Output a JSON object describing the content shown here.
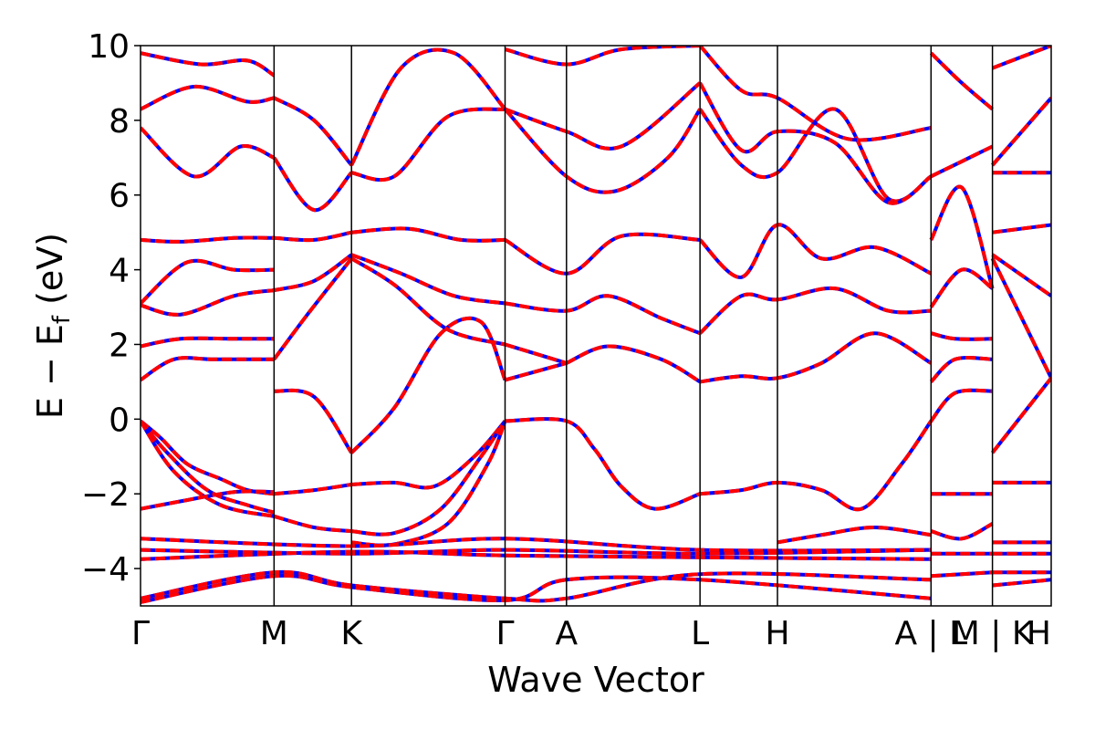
{
  "chart_data": {
    "type": "line",
    "title": "",
    "xlabel": "Wave Vector",
    "ylabel": "E  −  E",
    "ylabel_sub": "f",
    "ylabel_unit": " (eV)",
    "ylim": [
      -5,
      10
    ],
    "yticks": [
      -4,
      -2,
      0,
      2,
      4,
      6,
      8,
      10
    ],
    "ytick_labels": [
      "−4",
      "−2",
      "0",
      "2",
      "4",
      "6",
      "8",
      "10"
    ],
    "xlim": [
      0,
      6.82
    ],
    "kpoints": [
      {
        "label": "Γ",
        "x": 0.0
      },
      {
        "label": "M",
        "x": 1.0
      },
      {
        "label": "K",
        "x": 1.58
      },
      {
        "label": "Γ",
        "x": 2.73
      },
      {
        "label": "A",
        "x": 3.19
      },
      {
        "label": "L",
        "x": 4.19
      },
      {
        "label": "H",
        "x": 4.77
      },
      {
        "label": "A | L",
        "x": 5.92
      },
      {
        "label": "M | K",
        "x": 6.38
      },
      {
        "label": "H",
        "x": 6.82
      }
    ],
    "grid": false,
    "style": {
      "line_color": "#ff0000",
      "dash_color": "#0000ff"
    },
    "series": [
      {
        "x": [
          0,
          0.15,
          0.35,
          0.6,
          0.8,
          1.0
        ],
        "values": [
          -0.05,
          -0.5,
          -1.2,
          -1.6,
          -1.9,
          -2.0
        ]
      },
      {
        "x": [
          0,
          0.2,
          0.5,
          0.8,
          1.0
        ],
        "values": [
          -0.05,
          -0.9,
          -1.9,
          -2.3,
          -2.5
        ]
      },
      {
        "x": [
          0,
          0.25,
          0.6,
          1.0
        ],
        "values": [
          -0.05,
          -1.4,
          -2.3,
          -2.6
        ]
      },
      {
        "x": [
          0,
          0.3,
          0.7,
          1.0
        ],
        "values": [
          -2.4,
          -2.2,
          -1.95,
          -1.95
        ]
      },
      {
        "x": [
          1.0,
          1.3,
          1.58
        ],
        "values": [
          -2.0,
          -1.9,
          -1.75
        ]
      },
      {
        "x": [
          1.0,
          1.3,
          1.58
        ],
        "values": [
          -2.6,
          -2.9,
          -3.0
        ]
      },
      {
        "x": [
          1.58,
          1.9,
          2.2,
          2.5,
          2.73
        ],
        "values": [
          -1.75,
          -1.7,
          -1.8,
          -1.0,
          -0.05
        ]
      },
      {
        "x": [
          1.58,
          1.9,
          2.25,
          2.55,
          2.73
        ],
        "values": [
          -3.0,
          -3.05,
          -2.4,
          -1.0,
          -0.05
        ]
      },
      {
        "x": [
          1.58,
          1.9,
          2.3,
          2.6,
          2.73
        ],
        "values": [
          -3.3,
          -3.35,
          -2.8,
          -1.2,
          -0.05
        ]
      },
      {
        "x": [
          2.73,
          3.19,
          3.4,
          3.6,
          3.85,
          4.19
        ],
        "values": [
          -0.05,
          -0.05,
          -0.8,
          -1.8,
          -2.4,
          -2.0
        ]
      },
      {
        "x": [
          4.19,
          4.5,
          4.77,
          5.1,
          5.4,
          5.7,
          5.92
        ],
        "values": [
          -2.0,
          -1.9,
          -1.7,
          -1.9,
          -2.4,
          -1.2,
          -0.05
        ]
      },
      {
        "x": [
          4.77,
          5.1,
          5.5,
          5.92
        ],
        "values": [
          -3.3,
          -3.1,
          -2.9,
          -3.1
        ]
      },
      {
        "x": [
          0,
          0.25,
          0.55,
          1.0
        ],
        "values": [
          1.05,
          1.6,
          1.6,
          1.6
        ]
      },
      {
        "x": [
          0,
          0.3,
          0.7,
          1.0
        ],
        "values": [
          1.95,
          2.15,
          2.15,
          2.15
        ]
      },
      {
        "x": [
          1.0,
          1.3,
          1.58
        ],
        "values": [
          0.75,
          0.6,
          -0.9
        ]
      },
      {
        "x": [
          1.58,
          1.9,
          2.25,
          2.55,
          2.73
        ],
        "values": [
          -0.9,
          0.3,
          2.3,
          2.6,
          1.05
        ]
      },
      {
        "x": [
          1.0,
          1.25,
          1.58
        ],
        "values": [
          1.6,
          2.8,
          4.3
        ]
      },
      {
        "x": [
          1.58,
          1.9,
          2.3,
          2.73
        ],
        "values": [
          4.3,
          3.6,
          2.4,
          2.0
        ]
      },
      {
        "x": [
          2.73,
          3.19
        ],
        "values": [
          1.05,
          1.5
        ]
      },
      {
        "x": [
          2.73,
          3.19
        ],
        "values": [
          2.0,
          1.5
        ]
      },
      {
        "x": [
          3.19,
          3.5,
          3.9,
          4.19
        ],
        "values": [
          1.5,
          1.95,
          1.6,
          1.0
        ]
      },
      {
        "x": [
          4.19,
          4.5,
          4.77,
          5.1,
          5.5,
          5.92
        ],
        "values": [
          1.0,
          1.15,
          1.1,
          1.5,
          2.3,
          1.5
        ]
      },
      {
        "x": [
          2.73,
          3.19,
          3.5,
          3.9,
          4.19
        ],
        "values": [
          3.1,
          2.9,
          3.3,
          2.7,
          2.3
        ]
      },
      {
        "x": [
          4.19,
          4.5,
          4.77,
          5.2,
          5.6,
          5.92
        ],
        "values": [
          2.3,
          3.3,
          3.2,
          3.5,
          2.9,
          2.9
        ]
      },
      {
        "x": [
          0,
          0.3,
          0.7,
          1.0
        ],
        "values": [
          3.05,
          2.8,
          3.3,
          3.45
        ]
      },
      {
        "x": [
          0,
          0.3,
          0.7,
          1.0
        ],
        "values": [
          4.8,
          4.75,
          4.85,
          4.85
        ]
      },
      {
        "x": [
          0,
          0.35,
          0.7,
          1.0
        ],
        "values": [
          3.1,
          4.2,
          4.0,
          4.0
        ]
      },
      {
        "x": [
          1.0,
          1.3,
          1.58
        ],
        "values": [
          3.45,
          3.7,
          4.4
        ]
      },
      {
        "x": [
          1.0,
          1.3,
          1.58
        ],
        "values": [
          4.85,
          4.8,
          5.0
        ]
      },
      {
        "x": [
          1.58,
          1.95,
          2.35,
          2.73
        ],
        "values": [
          4.4,
          3.9,
          3.3,
          3.1
        ]
      },
      {
        "x": [
          1.58,
          2.0,
          2.4,
          2.73
        ],
        "values": [
          5.0,
          5.1,
          4.8,
          4.8
        ]
      },
      {
        "x": [
          2.73,
          3.19,
          3.6,
          4.19
        ],
        "values": [
          4.8,
          3.9,
          4.9,
          4.8
        ]
      },
      {
        "x": [
          4.19,
          4.5,
          4.77,
          5.1,
          5.5,
          5.92
        ],
        "values": [
          4.8,
          3.8,
          5.2,
          4.3,
          4.6,
          3.9
        ]
      },
      {
        "x": [
          0,
          0.4,
          0.75,
          1.0
        ],
        "values": [
          7.8,
          6.5,
          7.3,
          7.0
        ]
      },
      {
        "x": [
          0,
          0.4,
          0.8,
          1.0
        ],
        "values": [
          8.3,
          8.9,
          8.5,
          8.6
        ]
      },
      {
        "x": [
          0,
          0.45,
          0.8,
          1.0
        ],
        "values": [
          9.8,
          9.5,
          9.6,
          9.2
        ]
      },
      {
        "x": [
          1.0,
          1.3,
          1.58
        ],
        "values": [
          7.0,
          5.6,
          6.6
        ]
      },
      {
        "x": [
          1.0,
          1.3,
          1.58
        ],
        "values": [
          8.6,
          8.0,
          6.8
        ]
      },
      {
        "x": [
          1.58,
          1.9,
          2.3,
          2.73
        ],
        "values": [
          6.6,
          6.5,
          8.1,
          8.3
        ]
      },
      {
        "x": [
          1.58,
          1.95,
          2.35,
          2.73
        ],
        "values": [
          6.8,
          9.4,
          9.8,
          8.3
        ]
      },
      {
        "x": [
          2.73,
          3.19,
          3.55,
          3.95,
          4.19
        ],
        "values": [
          8.3,
          6.5,
          6.1,
          7.0,
          8.3
        ]
      },
      {
        "x": [
          2.73,
          3.19,
          3.6,
          4.19
        ],
        "values": [
          8.3,
          7.7,
          7.3,
          9.0
        ]
      },
      {
        "x": [
          2.73,
          3.19,
          3.6,
          4.19
        ],
        "values": [
          9.9,
          9.5,
          9.9,
          10.0
        ]
      },
      {
        "x": [
          4.19,
          4.5,
          4.77,
          5.2,
          5.6,
          5.92
        ],
        "values": [
          8.3,
          6.8,
          6.6,
          8.3,
          5.9,
          6.5
        ]
      },
      {
        "x": [
          4.19,
          4.5,
          4.77,
          5.2,
          5.6,
          5.92
        ],
        "values": [
          9.0,
          7.2,
          7.7,
          7.4,
          5.8,
          6.5
        ]
      },
      {
        "x": [
          4.19,
          4.5,
          4.77,
          5.3,
          5.92
        ],
        "values": [
          10.0,
          8.8,
          8.6,
          7.5,
          7.8
        ]
      },
      {
        "x": [
          0,
          1.58,
          2.73,
          4.19,
          5.92
        ],
        "values": [
          -3.2,
          -3.4,
          -3.2,
          -3.5,
          -3.5
        ]
      },
      {
        "x": [
          0,
          1.58,
          2.73,
          4.19,
          5.92
        ],
        "values": [
          -3.5,
          -3.6,
          -3.5,
          -3.6,
          -3.5
        ]
      },
      {
        "x": [
          0,
          1.58,
          2.73,
          4.19,
          5.92
        ],
        "values": [
          -3.75,
          -3.55,
          -3.65,
          -3.7,
          -3.75
        ]
      },
      {
        "x": [
          0,
          1.0,
          1.58,
          2.73,
          3.19,
          4.19,
          5.92
        ],
        "values": [
          -4.8,
          -4.1,
          -4.45,
          -4.8,
          -4.8,
          -4.15,
          -4.3
        ]
      },
      {
        "x": [
          0,
          1.0,
          1.58,
          2.73,
          3.19,
          4.19,
          5.92
        ],
        "values": [
          -4.9,
          -4.2,
          -4.5,
          -4.85,
          -4.3,
          -4.3,
          -4.8
        ]
      },
      {
        "x": [
          5.92,
          6.1,
          6.38
        ],
        "values": [
          -0.05,
          0.7,
          0.75
        ]
      },
      {
        "x": [
          5.92,
          6.1,
          6.38
        ],
        "values": [
          1.0,
          1.6,
          1.6
        ]
      },
      {
        "x": [
          5.92,
          6.1,
          6.38
        ],
        "values": [
          2.3,
          2.15,
          2.15
        ]
      },
      {
        "x": [
          5.92,
          6.15,
          6.38
        ],
        "values": [
          3.0,
          4.0,
          3.5
        ]
      },
      {
        "x": [
          5.92,
          6.15,
          6.38
        ],
        "values": [
          4.8,
          6.2,
          3.5
        ]
      },
      {
        "x": [
          5.92,
          6.15,
          6.38
        ],
        "values": [
          6.5,
          6.9,
          7.3
        ]
      },
      {
        "x": [
          5.92,
          6.15,
          6.38
        ],
        "values": [
          9.8,
          9.0,
          8.3
        ]
      },
      {
        "x": [
          5.92,
          6.15,
          6.38
        ],
        "values": [
          -2.0,
          -2.0,
          -2.0
        ]
      },
      {
        "x": [
          5.92,
          6.15,
          6.38
        ],
        "values": [
          -3.0,
          -3.2,
          -2.8
        ]
      },
      {
        "x": [
          5.92,
          6.38
        ],
        "values": [
          -3.6,
          -3.6
        ]
      },
      {
        "x": [
          5.92,
          6.38
        ],
        "values": [
          -4.2,
          -4.1
        ]
      },
      {
        "x": [
          6.38,
          6.82
        ],
        "values": [
          -0.9,
          1.1
        ]
      },
      {
        "x": [
          6.38,
          6.82
        ],
        "values": [
          4.3,
          1.1
        ]
      },
      {
        "x": [
          6.38,
          6.82
        ],
        "values": [
          4.4,
          3.3
        ]
      },
      {
        "x": [
          6.38,
          6.82
        ],
        "values": [
          5.0,
          5.2
        ]
      },
      {
        "x": [
          6.38,
          6.82
        ],
        "values": [
          6.6,
          6.6
        ]
      },
      {
        "x": [
          6.38,
          6.82
        ],
        "values": [
          6.8,
          8.6
        ]
      },
      {
        "x": [
          6.38,
          6.82
        ],
        "values": [
          9.4,
          10.0
        ]
      },
      {
        "x": [
          6.38,
          6.82
        ],
        "values": [
          -1.7,
          -1.7
        ]
      },
      {
        "x": [
          6.38,
          6.82
        ],
        "values": [
          -3.3,
          -3.3
        ]
      },
      {
        "x": [
          6.38,
          6.82
        ],
        "values": [
          -3.6,
          -3.6
        ]
      },
      {
        "x": [
          6.38,
          6.82
        ],
        "values": [
          -4.1,
          -4.1
        ]
      },
      {
        "x": [
          6.38,
          6.82
        ],
        "values": [
          -4.45,
          -4.3
        ]
      }
    ]
  }
}
